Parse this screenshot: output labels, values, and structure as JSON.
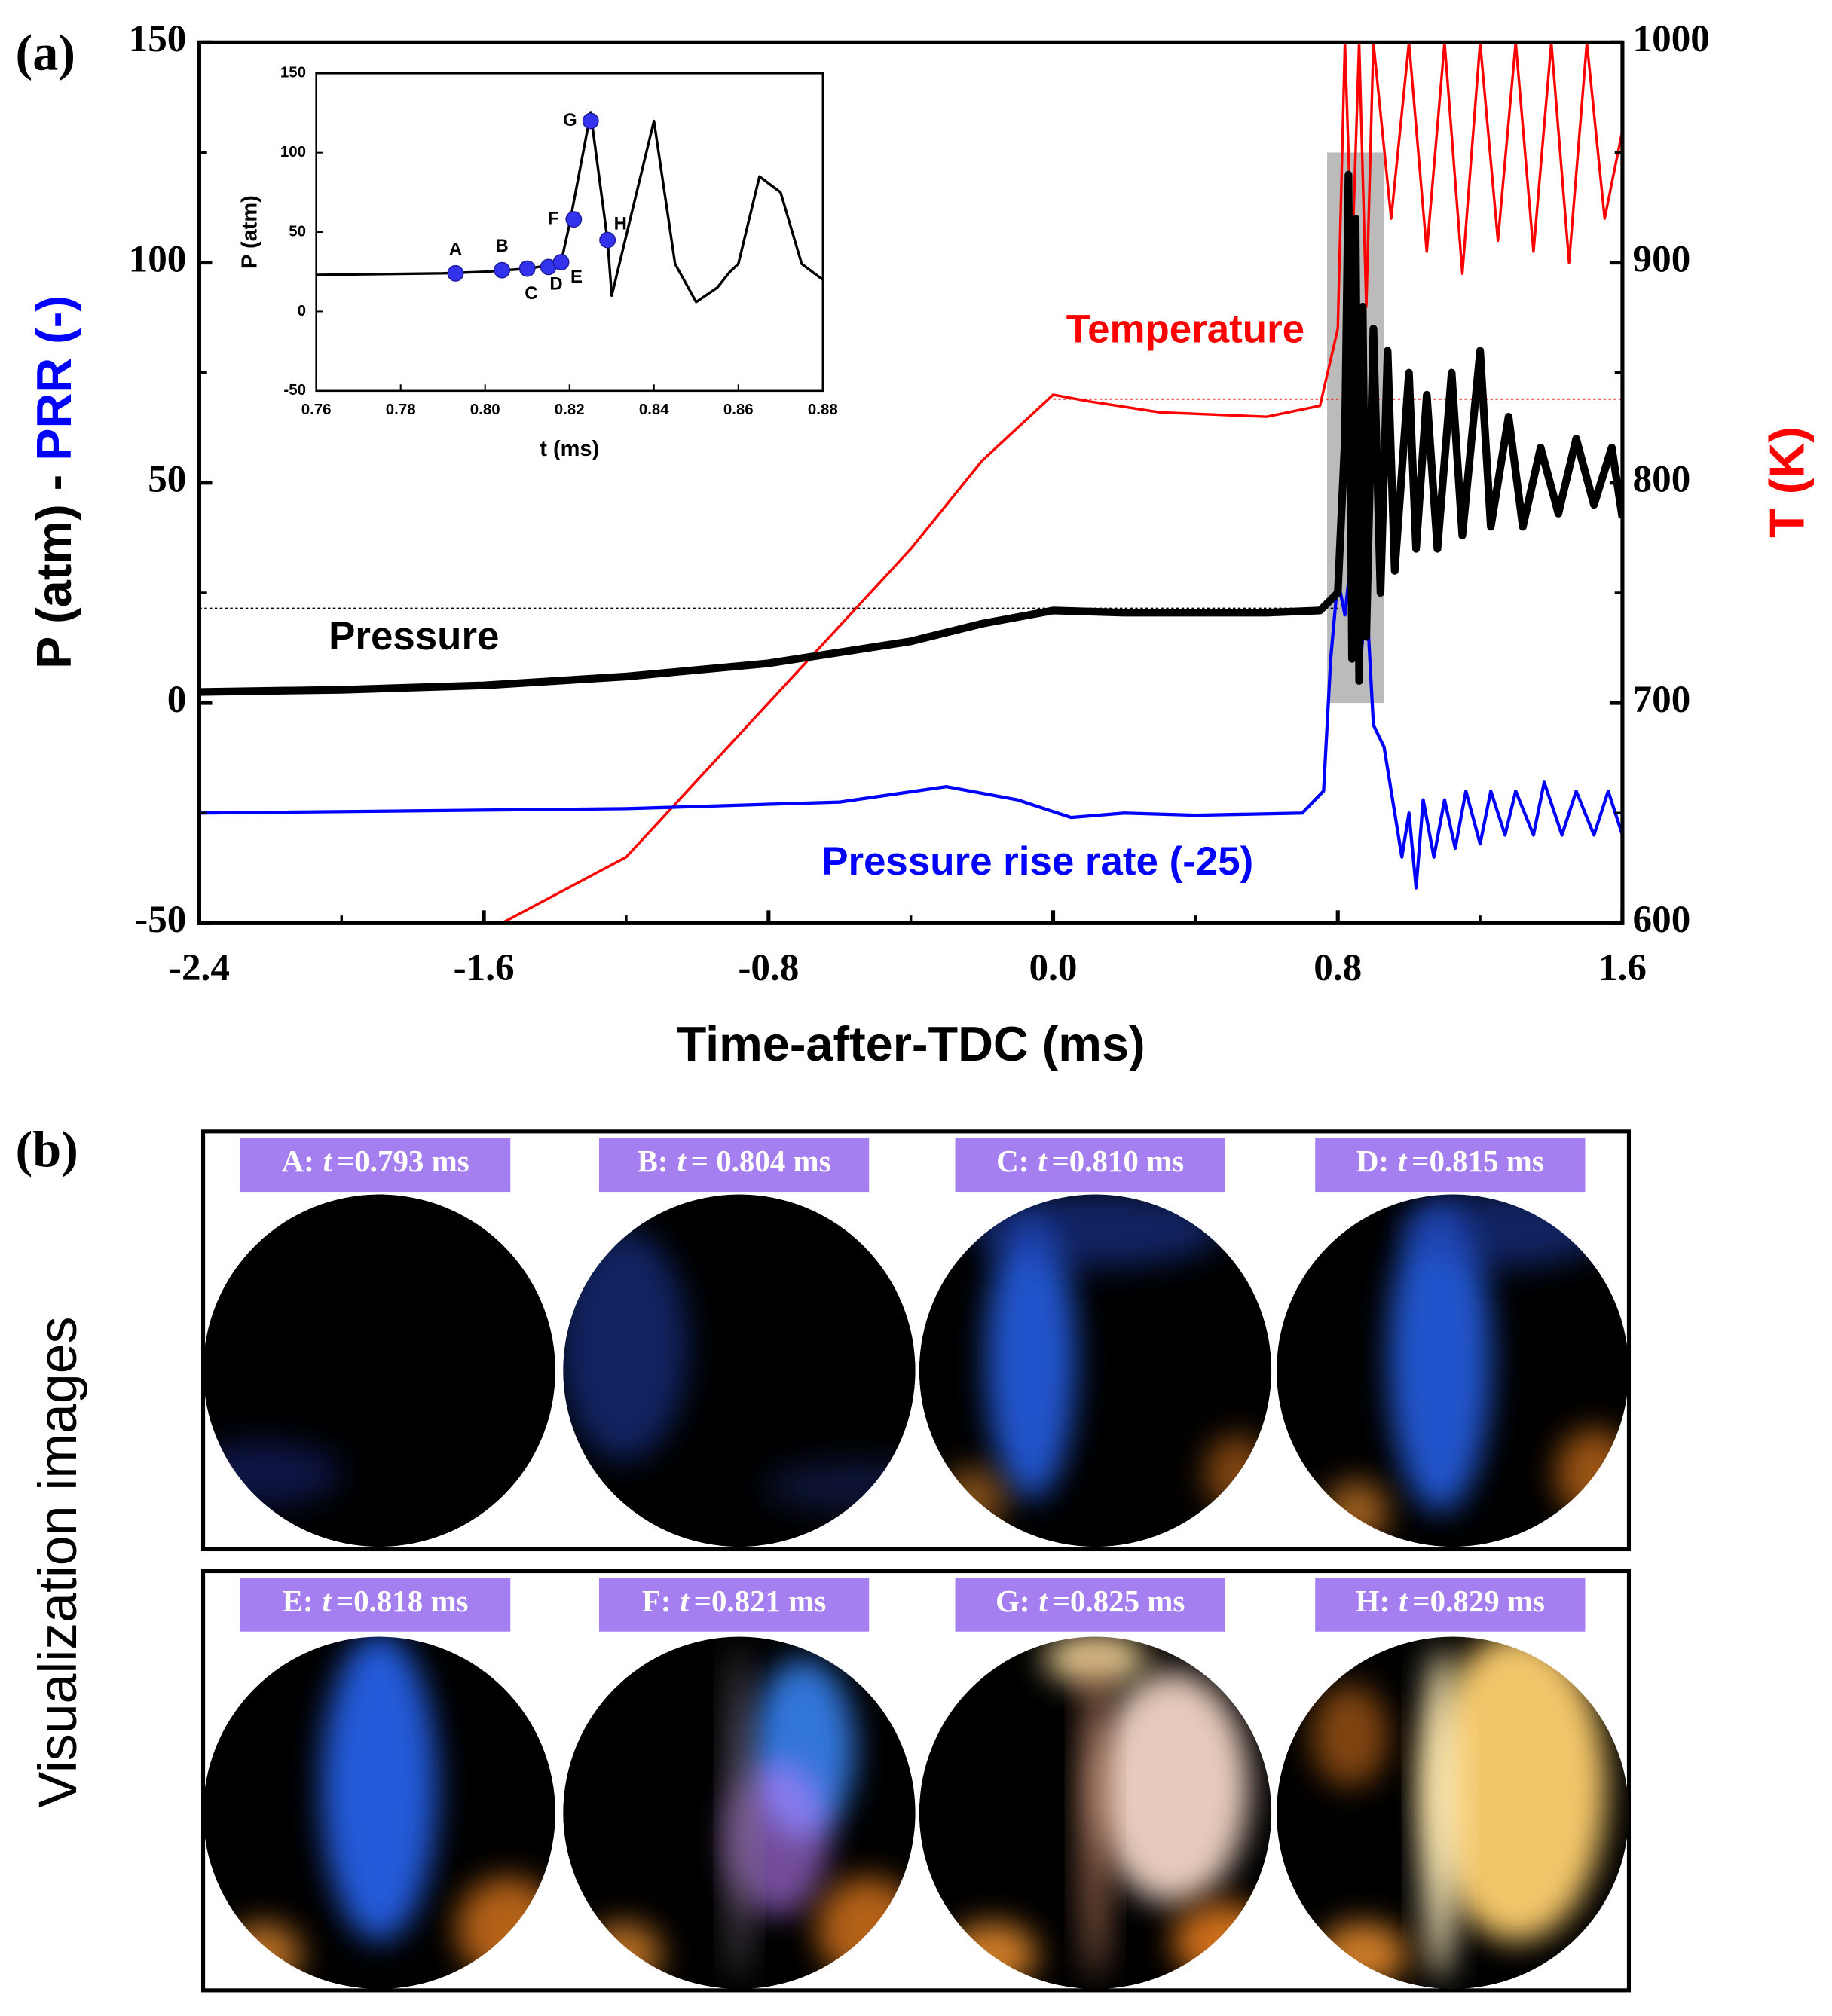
{
  "chart_data": [
    {
      "type": "line",
      "panel_label": "(a)",
      "xlabel": "Time-after-TDC (ms)",
      "ylabel": [
        {
          "text": "P (atm) - ",
          "color": "#000000"
        },
        {
          "text": "PRR (-)",
          "color": "#0000ff"
        }
      ],
      "y2label": "T (K)",
      "y2label_color": "#ff0000",
      "xlim": [
        -2.4,
        1.6
      ],
      "ylim": [
        -50,
        150
      ],
      "y2lim": [
        600,
        1000
      ],
      "xticks": [
        -2.4,
        -1.6,
        -0.8,
        {
          "value": 0,
          "label": "0.0"
        },
        0.8,
        1.6
      ],
      "xminorticks": [
        -2.0,
        -1.2,
        -0.4,
        0.4,
        1.2
      ],
      "yticks": [
        -50,
        0,
        50,
        100,
        150
      ],
      "yminorticks": [
        -25,
        25,
        75,
        125
      ],
      "y2ticks": [
        600,
        700,
        800,
        900,
        1000
      ],
      "y2minorticks": [
        650,
        750,
        850,
        950
      ],
      "highlight": {
        "x": [
          0.77,
          0.93
        ],
        "y": [
          0,
          125
        ],
        "color": "#bbbbbb"
      },
      "reference_lines": [
        {
          "axis": "y",
          "value": 21.5,
          "x": [
            -2.4,
            0.8
          ],
          "color": "#000000"
        },
        {
          "axis": "y2",
          "value": 838,
          "x": [
            0,
            1.6
          ],
          "color": "#ff0000"
        }
      ],
      "series": [
        {
          "name": "Temperature",
          "color": "#ff0000",
          "axis": "y2",
          "x": [
            -1.55,
            -1.2,
            -0.8,
            -0.4,
            -0.2,
            0.0,
            0.1,
            0.3,
            0.6,
            0.75,
            0.8,
            0.82,
            0.84,
            0.86,
            0.88,
            0.9,
            0.95,
            1.0,
            1.05,
            1.1,
            1.15,
            1.2,
            1.25,
            1.3,
            1.35,
            1.4,
            1.45,
            1.5,
            1.55,
            1.6
          ],
          "values": [
            600,
            630,
            700,
            770,
            810,
            840,
            837,
            832,
            830,
            835,
            870,
            1000,
            900,
            1000,
            880,
            1000,
            920,
            1000,
            905,
            1000,
            895,
            1000,
            910,
            1000,
            905,
            1000,
            900,
            1000,
            920,
            960
          ]
        },
        {
          "name": "Pressure rise rate (-25)",
          "color": "#0000ff",
          "x": [
            -2.4,
            -1.2,
            -0.6,
            -0.3,
            -0.1,
            0.05,
            0.2,
            0.4,
            0.7,
            0.76,
            0.78,
            0.8,
            0.82,
            0.84,
            0.86,
            0.88,
            0.9,
            0.93,
            0.96,
            0.98,
            1.0,
            1.02,
            1.04,
            1.07,
            1.1,
            1.13,
            1.16,
            1.2,
            1.23,
            1.27,
            1.3,
            1.35,
            1.38,
            1.43,
            1.47,
            1.52,
            1.56,
            1.6
          ],
          "values": [
            -25,
            -24,
            -22.5,
            -19,
            -22,
            -26,
            -25,
            -25.5,
            -25,
            -20,
            10,
            28,
            20,
            35,
            5,
            25,
            -5,
            -10,
            -25,
            -35,
            -25,
            -42,
            -22,
            -35,
            -22,
            -33,
            -20,
            -32,
            -20,
            -30,
            -20,
            -30,
            -18,
            -30,
            -20,
            -30,
            -20,
            -30
          ]
        },
        {
          "name": "Pressure",
          "color": "#000000",
          "x": [
            -2.4,
            -2.0,
            -1.6,
            -1.2,
            -0.8,
            -0.4,
            -0.2,
            0.0,
            0.2,
            0.4,
            0.6,
            0.75,
            0.8,
            0.82,
            0.83,
            0.84,
            0.85,
            0.86,
            0.87,
            0.88,
            0.9,
            0.92,
            0.94,
            0.96,
            1.0,
            1.02,
            1.05,
            1.08,
            1.12,
            1.15,
            1.2,
            1.23,
            1.28,
            1.32,
            1.37,
            1.42,
            1.47,
            1.52,
            1.57,
            1.6
          ],
          "values": [
            2.5,
            3,
            4,
            6,
            9,
            14,
            18,
            21,
            20.5,
            20.5,
            20.5,
            21,
            25,
            60,
            120,
            10,
            110,
            5,
            90,
            15,
            85,
            25,
            80,
            30,
            75,
            35,
            70,
            35,
            75,
            38,
            80,
            40,
            65,
            40,
            58,
            43,
            60,
            45,
            58,
            42
          ]
        }
      ]
    },
    {
      "type": "line",
      "xlabel": "t (ms)",
      "ylabel": "P (atm)",
      "xlim": [
        0.76,
        0.88
      ],
      "ylim": [
        -50,
        150
      ],
      "xticks": [
        0.76,
        0.78,
        {
          "value": 0.8,
          "label": "0.80"
        },
        0.82,
        0.84,
        0.86,
        0.88
      ],
      "yticks": [
        -50,
        0,
        50,
        100,
        150
      ],
      "series": [
        {
          "color": "#000000",
          "x": [
            0.76,
            0.79,
            0.8,
            0.81,
            0.815,
            0.818,
            0.82,
            0.825,
            0.829,
            0.83,
            0.84,
            0.845,
            0.85,
            0.855,
            0.858,
            0.86,
            0.865,
            0.87,
            0.875,
            0.88
          ],
          "values": [
            23,
            24,
            25,
            27,
            29,
            31,
            55,
            125,
            45,
            10,
            120,
            30,
            6,
            15,
            25,
            30,
            85,
            75,
            30,
            20
          ]
        }
      ],
      "point_color": "#3333ee",
      "points": [
        {
          "label": "A",
          "x": 0.793,
          "y": 24
        },
        {
          "label": "B",
          "x": 0.804,
          "y": 26
        },
        {
          "label": "C",
          "x": 0.81,
          "y": 27
        },
        {
          "label": "D",
          "x": 0.815,
          "y": 28
        },
        {
          "label": "E",
          "x": 0.818,
          "y": 31
        },
        {
          "label": "F",
          "x": 0.821,
          "y": 58
        },
        {
          "label": "G",
          "x": 0.825,
          "y": 120
        },
        {
          "label": "H",
          "x": 0.829,
          "y": 45
        }
      ]
    }
  ],
  "visualization": {
    "panel_label": "(b)",
    "title": "Visualization images",
    "frames": [
      {
        "letter": "A:",
        "var": "t",
        "time": "=0.793 ms"
      },
      {
        "letter": "B:",
        "var": "t",
        "time": "= 0.804 ms"
      },
      {
        "letter": "C:",
        "var": "t",
        "time": "=0.810 ms"
      },
      {
        "letter": "D:",
        "var": "t",
        "time": "=0.815 ms"
      },
      {
        "letter": "E:",
        "var": "t",
        "time": "=0.818 ms"
      },
      {
        "letter": "F:",
        "var": "t",
        "time": "=0.821 ms"
      },
      {
        "letter": "G:",
        "var": "t",
        "time": "=0.825 ms"
      },
      {
        "letter": "H:",
        "var": "t",
        "time": "=0.829 ms"
      }
    ]
  }
}
